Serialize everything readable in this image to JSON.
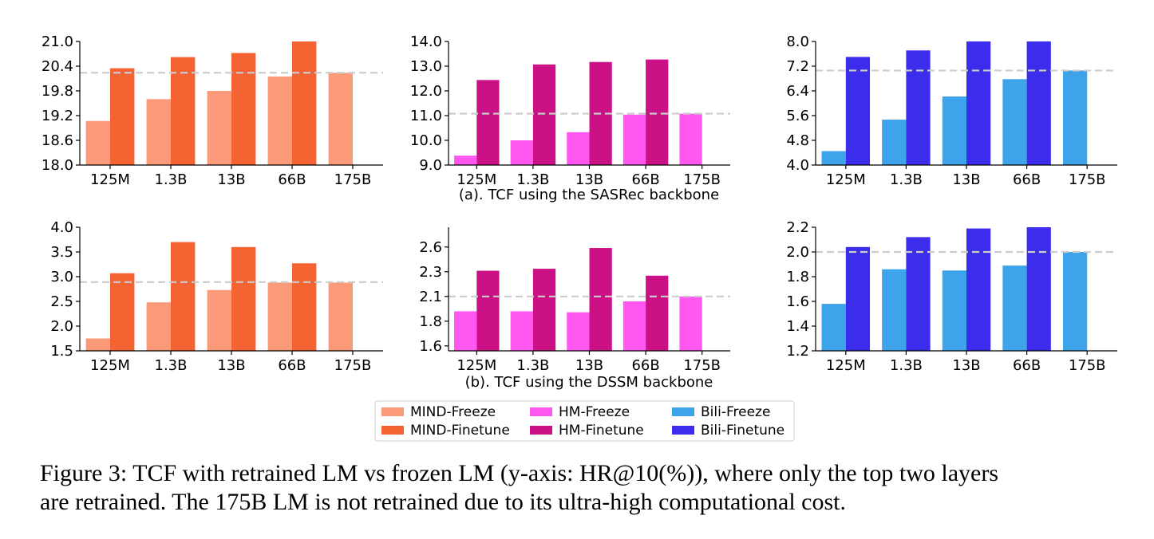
{
  "chart_data": [
    {
      "type": "bar",
      "categories": [
        "125M",
        "1.3B",
        "13B",
        "66B",
        "175B"
      ],
      "series": [
        {
          "name": "MIND-Freeze",
          "values": [
            19.07,
            19.6,
            19.8,
            20.15,
            20.24
          ]
        },
        {
          "name": "MIND-Finetune",
          "values": [
            20.35,
            20.62,
            20.72,
            21.05,
            null
          ]
        }
      ],
      "ylim": [
        18.0,
        21.0
      ],
      "yticks": [
        "18.0",
        "18.6",
        "19.2",
        "19.8",
        "20.4",
        "21.0"
      ],
      "reference_line": 20.24,
      "colors": {
        "freeze": "#fb9a79",
        "finetune": "#f56332"
      }
    },
    {
      "type": "bar",
      "categories": [
        "125M",
        "1.3B",
        "13B",
        "66B",
        "175B"
      ],
      "series": [
        {
          "name": "HM-Freeze",
          "values": [
            9.38,
            10.0,
            10.33,
            11.04,
            11.08
          ]
        },
        {
          "name": "HM-Finetune",
          "values": [
            12.44,
            13.07,
            13.17,
            13.27,
            null
          ]
        }
      ],
      "ylim": [
        9.0,
        14.0
      ],
      "yticks": [
        "9.0",
        "10.0",
        "11.0",
        "12.0",
        "13.0",
        "14.0"
      ],
      "reference_line": 11.08,
      "colors": {
        "freeze": "#ff57ef",
        "finetune": "#cc1186"
      }
    },
    {
      "type": "bar",
      "categories": [
        "125M",
        "1.3B",
        "13B",
        "66B",
        "175B"
      ],
      "series": [
        {
          "name": "Bili-Freeze",
          "values": [
            4.45,
            5.47,
            6.22,
            6.78,
            7.06
          ]
        },
        {
          "name": "Bili-Finetune",
          "values": [
            7.5,
            7.71,
            8.0,
            8.0,
            null
          ]
        }
      ],
      "ylim": [
        4.0,
        8.0
      ],
      "yticks": [
        "4.0",
        "4.8",
        "5.6",
        "6.4",
        "7.2",
        "8.0"
      ],
      "reference_line": 7.06,
      "colors": {
        "freeze": "#3da4ec",
        "finetune": "#3b2deb"
      }
    },
    {
      "type": "bar",
      "categories": [
        "125M",
        "1.3B",
        "13B",
        "66B",
        "175B"
      ],
      "series": [
        {
          "name": "MIND-Freeze",
          "values": [
            1.75,
            2.48,
            2.73,
            2.88,
            2.88
          ]
        },
        {
          "name": "MIND-Finetune",
          "values": [
            3.07,
            3.7,
            3.6,
            3.27,
            null
          ]
        }
      ],
      "ylim": [
        1.5,
        4.0
      ],
      "yticks": [
        "1.5",
        "2.0",
        "2.5",
        "3.0",
        "3.5",
        "4.0"
      ],
      "reference_line": 2.89,
      "colors": {
        "freeze": "#fb9a79",
        "finetune": "#f56332"
      }
    },
    {
      "type": "bar",
      "categories": [
        "125M",
        "1.3B",
        "13B",
        "66B",
        "175B"
      ],
      "series": [
        {
          "name": "HM-Freeze",
          "values": [
            1.95,
            1.95,
            1.94,
            2.05,
            2.1
          ]
        },
        {
          "name": "HM-Finetune",
          "values": [
            2.36,
            2.38,
            2.59,
            2.31,
            null
          ]
        }
      ],
      "ylim": [
        1.55,
        2.8
      ],
      "yticks": [
        "1.6",
        "1.8",
        "2.1",
        "2.3",
        "2.6"
      ],
      "ytick_values": [
        1.6,
        1.85,
        2.1,
        2.35,
        2.6
      ],
      "reference_line": 2.1,
      "colors": {
        "freeze": "#ff57ef",
        "finetune": "#cc1186"
      }
    },
    {
      "type": "bar",
      "categories": [
        "125M",
        "1.3B",
        "13B",
        "66B",
        "175B"
      ],
      "series": [
        {
          "name": "Bili-Freeze",
          "values": [
            1.58,
            1.86,
            1.85,
            1.89,
            2.0
          ]
        },
        {
          "name": "Bili-Finetune",
          "values": [
            2.04,
            2.12,
            2.19,
            2.2,
            null
          ]
        }
      ],
      "ylim": [
        1.2,
        2.2
      ],
      "yticks": [
        "1.2",
        "1.4",
        "1.6",
        "1.8",
        "2.0",
        "2.2"
      ],
      "reference_line": 2.0,
      "colors": {
        "freeze": "#3da4ec",
        "finetune": "#3b2deb"
      }
    }
  ],
  "subcaptions": {
    "a": "(a). TCF using the SASRec backbone",
    "b": "(b). TCF using the DSSM backbone"
  },
  "legend": [
    {
      "label": "MIND-Freeze",
      "color": "#fb9a79"
    },
    {
      "label": "MIND-Finetune",
      "color": "#f56332"
    },
    {
      "label": "HM-Freeze",
      "color": "#ff57ef"
    },
    {
      "label": "HM-Finetune",
      "color": "#cc1186"
    },
    {
      "label": "Bili-Freeze",
      "color": "#3da4ec"
    },
    {
      "label": "Bili-Finetune",
      "color": "#3b2deb"
    }
  ],
  "caption": {
    "line1": "Figure 3: TCF with retrained LM vs frozen LM (y-axis: HR@10(%)), where only the top two layers",
    "line2": "are retrained. The 175B LM is not retrained due to its ultra-high computational cost."
  }
}
